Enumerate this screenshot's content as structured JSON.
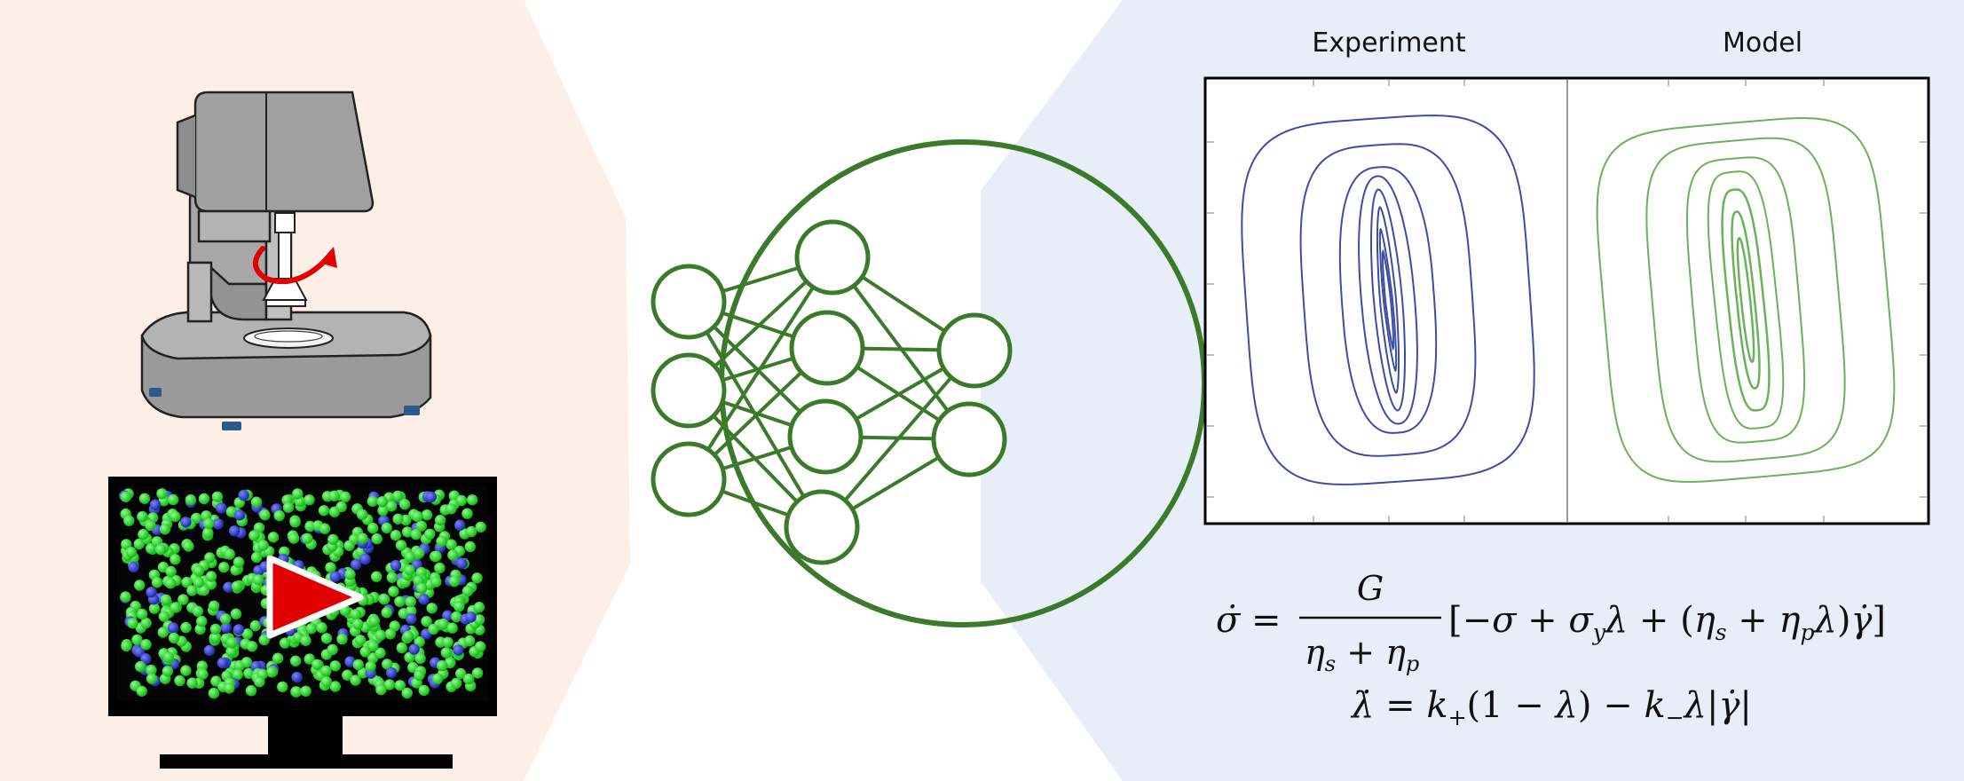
{
  "panels": {
    "experiment_label": "Experiment",
    "model_label": "Model"
  },
  "colors": {
    "left_bg": "#fdeee6",
    "right_bg": "#e7eef8",
    "network_green": "#3a7a2a",
    "experiment_loop": "#3d4ca6",
    "model_loop": "#69b25a",
    "video_play": "#e00000"
  },
  "icons": [
    "rheometer-icon",
    "simulation-monitor-icon",
    "neural-network-icon",
    "play-icon"
  ],
  "equations": {
    "line1_lhs": "σ̇ =",
    "line1_numerator": "G",
    "line1_denominator": "η",
    "line1_bracket": "[−σ + σ",
    "line2": "λ̇ = k"
  }
}
